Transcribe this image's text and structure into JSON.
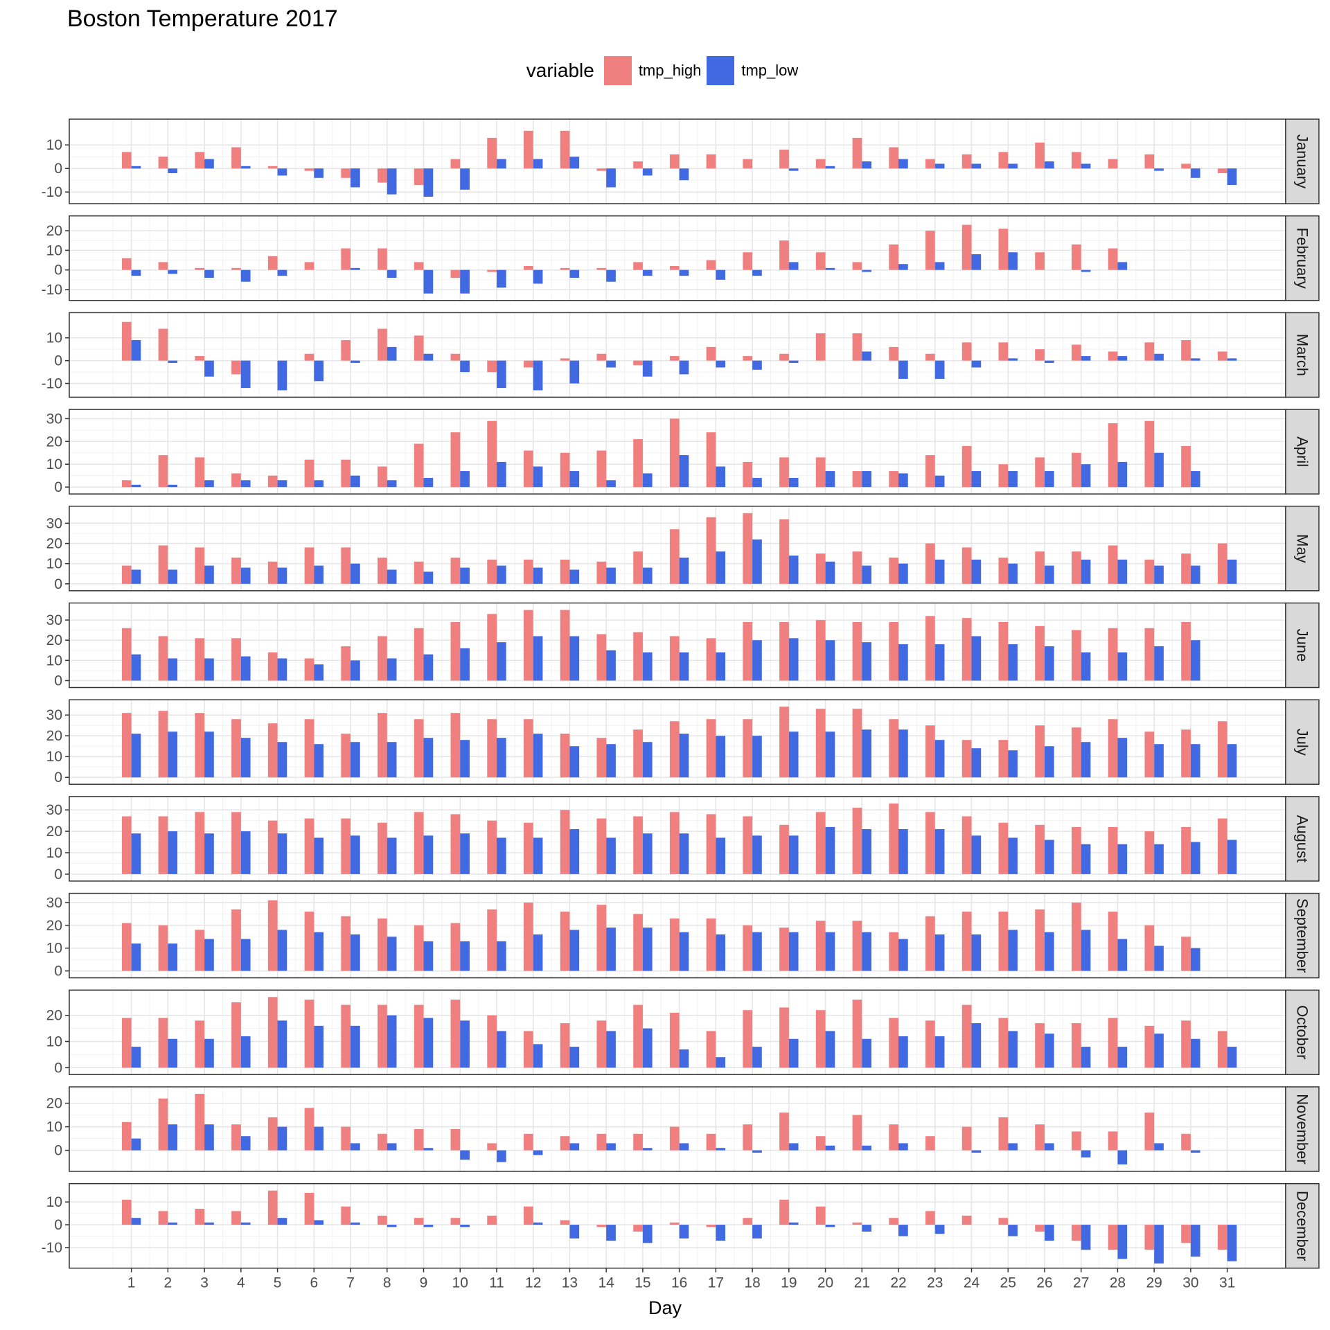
{
  "chart_data": {
    "type": "bar",
    "title": "Boston Temperature 2017",
    "xlabel": "Day",
    "ylabel": "",
    "legend": {
      "title": "variable",
      "position": "top",
      "entries": [
        {
          "name": "tmp_high",
          "color": "#F08080"
        },
        {
          "name": "tmp_low",
          "color": "#4169E1"
        }
      ]
    },
    "grid": true,
    "x_ticks": [
      1,
      2,
      3,
      4,
      5,
      6,
      7,
      8,
      9,
      10,
      11,
      12,
      13,
      14,
      15,
      16,
      17,
      18,
      19,
      20,
      21,
      22,
      23,
      24,
      25,
      26,
      27,
      28,
      29,
      30,
      31
    ],
    "panels": [
      {
        "month": "January",
        "ylim": [
          -12,
          18
        ],
        "yticks": [
          -10,
          0,
          10
        ],
        "tmp_high": [
          7,
          5,
          7,
          9,
          1,
          -1,
          -4,
          -6,
          -7,
          4,
          13,
          16,
          16,
          -1,
          3,
          6,
          6,
          4,
          8,
          4,
          13,
          9,
          4,
          6,
          7,
          11,
          7,
          4,
          6,
          2,
          -2
        ],
        "tmp_low": [
          1,
          -2,
          4,
          1,
          -3,
          -4,
          -8,
          -11,
          -12,
          -9,
          4,
          4,
          5,
          -8,
          -3,
          -5,
          null,
          null,
          -1,
          1,
          3,
          4,
          2,
          2,
          2,
          3,
          2,
          null,
          -1,
          -4,
          -7
        ]
      },
      {
        "month": "February",
        "ylim": [
          -12,
          24
        ],
        "yticks": [
          -10,
          0,
          10,
          20
        ],
        "tmp_high": [
          6,
          4,
          1,
          1,
          7,
          4,
          11,
          11,
          4,
          -4,
          -1,
          2,
          1,
          1,
          4,
          2,
          5,
          9,
          15,
          9,
          4,
          13,
          20,
          23,
          21,
          9,
          13,
          11,
          null,
          null,
          null
        ],
        "tmp_low": [
          -3,
          -2,
          -4,
          -6,
          -3,
          null,
          1,
          -4,
          -12,
          -12,
          -9,
          -7,
          -4,
          -6,
          -3,
          -3,
          -5,
          -3,
          4,
          1,
          -1,
          3,
          4,
          8,
          9,
          null,
          -1,
          4,
          null,
          null,
          null
        ]
      },
      {
        "month": "March",
        "ylim": [
          -13,
          18
        ],
        "yticks": [
          -10,
          0,
          10
        ],
        "tmp_high": [
          17,
          14,
          2,
          -6,
          null,
          3,
          9,
          14,
          11,
          3,
          -5,
          -3,
          1,
          3,
          -2,
          2,
          6,
          2,
          3,
          12,
          12,
          6,
          3,
          8,
          8,
          5,
          7,
          4,
          8,
          9,
          4
        ],
        "tmp_low": [
          9,
          -1,
          -7,
          -12,
          -13,
          -9,
          -1,
          6,
          3,
          -5,
          -12,
          -13,
          -10,
          -3,
          -7,
          -6,
          -3,
          -4,
          -1,
          null,
          4,
          -8,
          -8,
          -3,
          1,
          -1,
          2,
          2,
          3,
          1,
          1
        ]
      },
      {
        "month": "April",
        "ylim": [
          0,
          31
        ],
        "yticks": [
          0,
          10,
          20,
          30
        ],
        "tmp_high": [
          3,
          14,
          13,
          6,
          5,
          12,
          12,
          9,
          19,
          24,
          29,
          16,
          15,
          16,
          21,
          30,
          24,
          11,
          13,
          13,
          7,
          7,
          14,
          18,
          10,
          13,
          15,
          28,
          29,
          18,
          null
        ],
        "tmp_low": [
          1,
          1,
          3,
          3,
          3,
          3,
          5,
          3,
          4,
          7,
          11,
          9,
          7,
          3,
          6,
          14,
          9,
          4,
          4,
          7,
          7,
          6,
          5,
          7,
          7,
          7,
          10,
          11,
          15,
          7,
          null
        ]
      },
      {
        "month": "May",
        "ylim": [
          0,
          35
        ],
        "yticks": [
          0,
          10,
          20,
          30
        ],
        "tmp_high": [
          9,
          19,
          18,
          13,
          11,
          18,
          18,
          13,
          11,
          13,
          12,
          12,
          12,
          11,
          16,
          27,
          33,
          35,
          32,
          15,
          16,
          13,
          20,
          18,
          13,
          16,
          16,
          19,
          12,
          15,
          20
        ],
        "tmp_low": [
          7,
          7,
          9,
          8,
          8,
          9,
          10,
          7,
          6,
          8,
          9,
          8,
          7,
          8,
          8,
          13,
          16,
          22,
          14,
          11,
          9,
          10,
          12,
          12,
          10,
          9,
          12,
          12,
          9,
          9,
          12
        ]
      },
      {
        "month": "June",
        "ylim": [
          0,
          35
        ],
        "yticks": [
          0,
          10,
          20,
          30
        ],
        "tmp_high": [
          26,
          22,
          21,
          21,
          14,
          11,
          17,
          22,
          26,
          29,
          33,
          35,
          35,
          23,
          24,
          22,
          21,
          29,
          29,
          30,
          29,
          29,
          32,
          31,
          29,
          27,
          25,
          26,
          26,
          29,
          null
        ],
        "tmp_low": [
          13,
          11,
          11,
          12,
          11,
          8,
          10,
          11,
          13,
          16,
          19,
          22,
          22,
          15,
          14,
          14,
          14,
          20,
          21,
          20,
          19,
          18,
          18,
          22,
          18,
          17,
          14,
          14,
          17,
          20,
          null
        ]
      },
      {
        "month": "July",
        "ylim": [
          0,
          34
        ],
        "yticks": [
          0,
          10,
          20,
          30
        ],
        "tmp_high": [
          31,
          32,
          31,
          28,
          26,
          28,
          21,
          31,
          28,
          31,
          28,
          28,
          21,
          19,
          23,
          27,
          28,
          28,
          34,
          33,
          33,
          28,
          25,
          18,
          18,
          25,
          24,
          28,
          22,
          23,
          27
        ],
        "tmp_low": [
          21,
          22,
          22,
          19,
          17,
          16,
          17,
          17,
          19,
          18,
          19,
          21,
          15,
          16,
          17,
          21,
          20,
          20,
          22,
          22,
          23,
          23,
          18,
          14,
          13,
          15,
          17,
          19,
          16,
          16,
          16
        ]
      },
      {
        "month": "August",
        "ylim": [
          0,
          33
        ],
        "yticks": [
          0,
          10,
          20,
          30
        ],
        "tmp_high": [
          27,
          27,
          29,
          29,
          25,
          26,
          26,
          24,
          29,
          28,
          25,
          24,
          30,
          26,
          27,
          29,
          28,
          27,
          23,
          29,
          31,
          33,
          29,
          27,
          24,
          23,
          22,
          22,
          20,
          22,
          26
        ],
        "tmp_low": [
          19,
          20,
          19,
          20,
          19,
          17,
          18,
          17,
          18,
          19,
          17,
          17,
          21,
          17,
          19,
          19,
          17,
          18,
          18,
          22,
          21,
          21,
          21,
          18,
          17,
          16,
          14,
          14,
          14,
          15,
          16
        ]
      },
      {
        "month": "September",
        "ylim": [
          0,
          31
        ],
        "yticks": [
          0,
          10,
          20,
          30
        ],
        "tmp_high": [
          21,
          20,
          18,
          27,
          31,
          26,
          24,
          23,
          20,
          21,
          27,
          30,
          26,
          29,
          25,
          23,
          23,
          20,
          19,
          22,
          22,
          17,
          24,
          26,
          26,
          27,
          30,
          26,
          20,
          15,
          null
        ],
        "tmp_low": [
          12,
          12,
          14,
          14,
          18,
          17,
          16,
          15,
          13,
          13,
          13,
          16,
          18,
          19,
          19,
          17,
          16,
          17,
          17,
          17,
          17,
          14,
          16,
          16,
          18,
          17,
          18,
          14,
          11,
          10,
          null
        ]
      },
      {
        "month": "October",
        "ylim": [
          0,
          27
        ],
        "yticks": [
          0,
          10,
          20
        ],
        "tmp_high": [
          19,
          19,
          18,
          25,
          27,
          26,
          24,
          24,
          24,
          26,
          20,
          14,
          17,
          18,
          24,
          21,
          14,
          22,
          23,
          22,
          26,
          19,
          18,
          24,
          19,
          17,
          17,
          19,
          16,
          18,
          14
        ],
        "tmp_low": [
          8,
          11,
          11,
          12,
          18,
          16,
          16,
          20,
          19,
          18,
          14,
          9,
          8,
          14,
          15,
          7,
          4,
          8,
          11,
          14,
          11,
          12,
          12,
          17,
          14,
          13,
          8,
          8,
          13,
          11,
          8
        ]
      },
      {
        "month": "November",
        "ylim": [
          -6,
          24
        ],
        "yticks": [
          0,
          10,
          20
        ],
        "tmp_high": [
          12,
          22,
          24,
          11,
          14,
          18,
          10,
          7,
          9,
          9,
          3,
          7,
          6,
          7,
          7,
          10,
          7,
          11,
          16,
          6,
          15,
          11,
          6,
          10,
          14,
          11,
          8,
          8,
          16,
          7,
          null
        ],
        "tmp_low": [
          5,
          11,
          11,
          6,
          10,
          10,
          3,
          3,
          1,
          -4,
          -5,
          -2,
          3,
          3,
          1,
          3,
          1,
          -1,
          3,
          2,
          2,
          3,
          null,
          -1,
          3,
          3,
          -3,
          -6,
          3,
          -1,
          null
        ]
      },
      {
        "month": "December",
        "ylim": [
          -16,
          15
        ],
        "yticks": [
          -10,
          0,
          10
        ],
        "tmp_high": [
          11,
          6,
          7,
          6,
          15,
          14,
          8,
          4,
          3,
          3,
          4,
          8,
          2,
          -1,
          -3,
          1,
          -1,
          3,
          11,
          8,
          1,
          3,
          6,
          4,
          3,
          -3,
          -7,
          -11,
          -11,
          -8,
          -11
        ],
        "tmp_low": [
          3,
          1,
          1,
          1,
          3,
          2,
          1,
          -1,
          -1,
          -1,
          null,
          1,
          -6,
          -7,
          -8,
          -6,
          -7,
          -6,
          1,
          -1,
          -3,
          -5,
          -4,
          null,
          -5,
          -7,
          -11,
          -15,
          -17,
          -14,
          -16
        ]
      }
    ]
  }
}
